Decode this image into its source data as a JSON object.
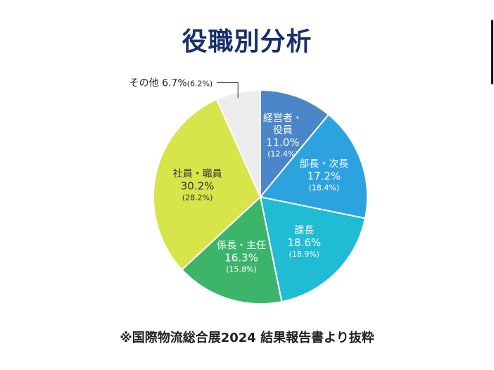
{
  "title": "役職別分析",
  "footnote": "※国際物流総合展2024 結果報告書より抜粋",
  "chart_data": {
    "type": "pie",
    "title": "役職別分析",
    "start_angle_deg": 0,
    "direction": "clockwise",
    "slices": [
      {
        "label": [
          "経営者・",
          "役員"
        ],
        "value": 11.0,
        "value_label": "11.0%",
        "prev_label": "(12.4%)",
        "color": "#4a86c8",
        "text_color": "#ffffff"
      },
      {
        "label": [
          "部長・次長"
        ],
        "value": 17.2,
        "value_label": "17.2%",
        "prev_label": "(18.4%)",
        "color": "#2ca3df",
        "text_color": "#ffffff"
      },
      {
        "label": [
          "課長"
        ],
        "value": 18.6,
        "value_label": "18.6%",
        "prev_label": "(18.9%)",
        "color": "#1fbcd3",
        "text_color": "#ffffff"
      },
      {
        "label": [
          "係長・主任"
        ],
        "value": 16.3,
        "value_label": "16.3%",
        "prev_label": "(15.8%)",
        "color": "#3cb56a",
        "text_color": "#ffffff"
      },
      {
        "label": [
          "社員・職員"
        ],
        "value": 30.2,
        "value_label": "30.2%",
        "prev_label": "(28.2%)",
        "color": "#d7e44a",
        "text_color": "#333333"
      },
      {
        "label": [
          "その他"
        ],
        "value": 6.7,
        "value_label": "6.7%",
        "prev_label": "(6.2%)",
        "color": "#ececec",
        "text_color": "#222222",
        "external": true
      }
    ]
  }
}
